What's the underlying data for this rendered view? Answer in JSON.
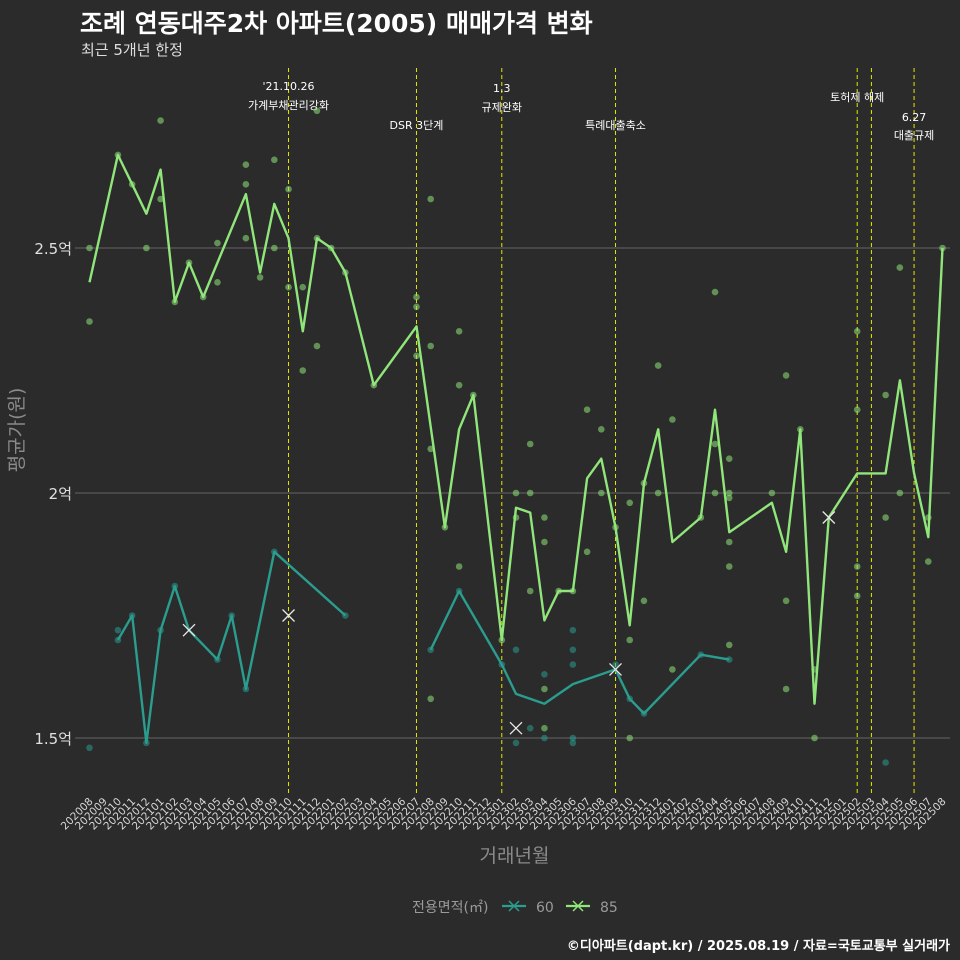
{
  "title": "조례 연동대주2차 아파트(2005) 매매가격 변화",
  "subtitle": "최근 5개년 한정",
  "caption": "©디아파트(dapt.kr) / 2025.08.19 / 자료=국토교통부 실거래가",
  "chart_data": {
    "type": "line",
    "title": "조례 연동대주2차 아파트(2005) 매매가격 변화",
    "subtitle": "최근 5개년 한정",
    "xlabel": "거래년월",
    "ylabel": "평균가(원)",
    "ylim": [
      1.4,
      2.72
    ],
    "yticks": [
      {
        "v": 1.5,
        "label": "1.5억"
      },
      {
        "v": 2.0,
        "label": "2억"
      },
      {
        "v": 2.5,
        "label": "2.5억"
      }
    ],
    "categories": [
      "202008",
      "202009",
      "202010",
      "202011",
      "202012",
      "202101",
      "202102",
      "202103",
      "202104",
      "202105",
      "202106",
      "202107",
      "202108",
      "202109",
      "202110",
      "202111",
      "202112",
      "202201",
      "202202",
      "202203",
      "202204",
      "202205",
      "202206",
      "202207",
      "202208",
      "202209",
      "202210",
      "202211",
      "202212",
      "202301",
      "202302",
      "202303",
      "202304",
      "202305",
      "202306",
      "202307",
      "202308",
      "202309",
      "202310",
      "202311",
      "202312",
      "202401",
      "202402",
      "202403",
      "202404",
      "202405",
      "202406",
      "202407",
      "202408",
      "202409",
      "202410",
      "202411",
      "202412",
      "202501",
      "202502",
      "202503",
      "202504",
      "202505",
      "202506",
      "202507",
      "202508"
    ],
    "legend": {
      "title": "전용면적(㎡)",
      "position": "bottom"
    },
    "annotations": [
      {
        "x": "202110",
        "lines": [
          "'21.10.26",
          "가계부채관리강화"
        ]
      },
      {
        "x": "202207",
        "lines": [
          "DSR 3단계"
        ]
      },
      {
        "x": "202301",
        "lines": [
          "1.3",
          "규제완화"
        ]
      },
      {
        "x": "202309",
        "lines": [
          "특례대출축소"
        ]
      },
      {
        "x": "202502",
        "lines": [
          "토허제 해제"
        ]
      },
      {
        "x": "202503",
        "lines": []
      },
      {
        "x": "202506",
        "lines": [
          "6.27",
          "대출규제"
        ]
      }
    ],
    "series": [
      {
        "name": "60",
        "color": "#2a9d8f",
        "line": [
          [
            1.7,
            "202010"
          ],
          [
            1.75,
            "202011"
          ],
          [
            1.49,
            "202012"
          ],
          [
            1.72,
            "202101"
          ],
          [
            1.81,
            "202102"
          ],
          [
            1.72,
            "202103"
          ],
          [
            1.66,
            "202105"
          ],
          [
            1.75,
            "202106"
          ],
          [
            1.6,
            "202107"
          ],
          [
            1.88,
            "202109"
          ],
          [
            1.75,
            "202202"
          ]
        ],
        "line2": [
          [
            1.68,
            "202208"
          ],
          [
            1.8,
            "202210"
          ],
          [
            1.65,
            "202301"
          ],
          [
            1.59,
            "202302"
          ],
          [
            1.57,
            "202304"
          ],
          [
            1.61,
            "202306"
          ],
          [
            1.64,
            "202309"
          ],
          [
            1.58,
            "202310"
          ],
          [
            1.55,
            "202311"
          ],
          [
            1.67,
            "202403"
          ],
          [
            1.66,
            "202405"
          ]
        ],
        "points": [
          [
            "202008",
            1.48
          ],
          [
            "202010",
            1.7
          ],
          [
            "202010",
            1.72
          ],
          [
            "202011",
            1.75
          ],
          [
            "202012",
            1.49
          ],
          [
            "202101",
            1.72
          ],
          [
            "202102",
            1.81
          ],
          [
            "202105",
            1.66
          ],
          [
            "202106",
            1.75
          ],
          [
            "202107",
            1.6
          ],
          [
            "202109",
            1.88
          ],
          [
            "202202",
            1.75
          ],
          [
            "202208",
            1.68
          ],
          [
            "202210",
            1.8
          ],
          [
            "202301",
            1.65
          ],
          [
            "202302",
            1.49
          ],
          [
            "202302",
            1.68
          ],
          [
            "202303",
            1.52
          ],
          [
            "202304",
            1.5
          ],
          [
            "202304",
            1.63
          ],
          [
            "202306",
            1.49
          ],
          [
            "202306",
            1.5
          ],
          [
            "202306",
            1.65
          ],
          [
            "202306",
            1.68
          ],
          [
            "202306",
            1.72
          ],
          [
            "202309",
            1.65
          ],
          [
            "202310",
            1.58
          ],
          [
            "202311",
            1.55
          ],
          [
            "202403",
            1.67
          ],
          [
            "202405",
            1.66
          ],
          [
            "202504",
            1.45
          ]
        ],
        "crosses": [
          [
            "202103",
            1.72
          ],
          [
            "202110",
            1.75
          ],
          [
            "202302",
            1.52
          ],
          [
            "202309",
            1.64
          ]
        ]
      },
      {
        "name": "85",
        "color": "#90e67a",
        "line": [
          [
            "202008",
            2.43
          ],
          [
            "202010",
            2.69
          ],
          [
            "202012",
            2.57
          ],
          [
            "202101",
            2.66
          ],
          [
            "202102",
            2.39
          ],
          [
            "202103",
            2.47
          ],
          [
            "202104",
            2.4
          ],
          [
            "202107",
            2.61
          ],
          [
            "202108",
            2.45
          ],
          [
            "202109",
            2.59
          ],
          [
            "202110",
            2.52
          ],
          [
            "202111",
            2.33
          ],
          [
            "202112",
            2.52
          ],
          [
            "202201",
            2.5
          ],
          [
            "202202",
            2.45
          ],
          [
            "202204",
            2.22
          ],
          [
            "202207",
            2.34
          ],
          [
            "202209",
            1.93
          ],
          [
            "202210",
            2.13
          ],
          [
            "202211",
            2.2
          ],
          [
            "202301",
            1.7
          ],
          [
            "202302",
            1.97
          ],
          [
            "202303",
            1.96
          ],
          [
            "202304",
            1.74
          ],
          [
            "202305",
            1.8
          ],
          [
            "202306",
            1.8
          ],
          [
            "202307",
            2.03
          ],
          [
            "202308",
            2.07
          ],
          [
            "202309",
            1.93
          ],
          [
            "202310",
            1.73
          ],
          [
            "202311",
            2.02
          ],
          [
            "202312",
            2.13
          ],
          [
            "202401",
            1.9
          ],
          [
            "202403",
            1.95
          ],
          [
            "202404",
            2.17
          ],
          [
            "202405",
            1.92
          ],
          [
            "202408",
            1.98
          ],
          [
            "202409",
            1.88
          ],
          [
            "202410",
            2.13
          ],
          [
            "202411",
            1.57
          ],
          [
            "202412",
            1.95
          ],
          [
            "202502",
            2.04
          ],
          [
            "202504",
            2.04
          ],
          [
            "202505",
            2.23
          ],
          [
            "202506",
            2.04
          ],
          [
            "202507",
            1.91
          ],
          [
            "202508",
            2.5
          ]
        ],
        "points": [
          [
            "202008",
            2.5
          ],
          [
            "202008",
            2.35
          ],
          [
            "202010",
            2.69
          ],
          [
            "202011",
            2.63
          ],
          [
            "202012",
            2.5
          ],
          [
            "202101",
            2.6
          ],
          [
            "202101",
            2.76
          ],
          [
            "202102",
            2.39
          ],
          [
            "202103",
            2.47
          ],
          [
            "202104",
            2.4
          ],
          [
            "202105",
            2.43
          ],
          [
            "202105",
            2.51
          ],
          [
            "202107",
            2.52
          ],
          [
            "202107",
            2.63
          ],
          [
            "202107",
            2.67
          ],
          [
            "202108",
            2.44
          ],
          [
            "202109",
            2.5
          ],
          [
            "202109",
            2.68
          ],
          [
            "202110",
            2.42
          ],
          [
            "202110",
            2.62
          ],
          [
            "202111",
            2.25
          ],
          [
            "202111",
            2.42
          ],
          [
            "202112",
            2.3
          ],
          [
            "202112",
            2.52
          ],
          [
            "202112",
            2.78
          ],
          [
            "202201",
            2.5
          ],
          [
            "202202",
            2.45
          ],
          [
            "202204",
            2.22
          ],
          [
            "202207",
            2.28
          ],
          [
            "202207",
            2.38
          ],
          [
            "202207",
            2.4
          ],
          [
            "202208",
            2.09
          ],
          [
            "202208",
            2.3
          ],
          [
            "202208",
            2.6
          ],
          [
            "202208",
            1.58
          ],
          [
            "202209",
            1.93
          ],
          [
            "202210",
            1.85
          ],
          [
            "202210",
            2.22
          ],
          [
            "202210",
            2.33
          ],
          [
            "202211",
            2.2
          ],
          [
            "202301",
            1.7
          ],
          [
            "202302",
            1.95
          ],
          [
            "202302",
            2.0
          ],
          [
            "202303",
            1.8
          ],
          [
            "202303",
            2.0
          ],
          [
            "202303",
            2.1
          ],
          [
            "202304",
            1.52
          ],
          [
            "202304",
            1.6
          ],
          [
            "202304",
            1.9
          ],
          [
            "202304",
            1.95
          ],
          [
            "202305",
            1.8
          ],
          [
            "202306",
            1.8
          ],
          [
            "202307",
            1.88
          ],
          [
            "202307",
            2.17
          ],
          [
            "202308",
            2.0
          ],
          [
            "202308",
            2.13
          ],
          [
            "202309",
            1.93
          ],
          [
            "202310",
            1.5
          ],
          [
            "202310",
            1.7
          ],
          [
            "202310",
            1.98
          ],
          [
            "202311",
            1.78
          ],
          [
            "202311",
            2.02
          ],
          [
            "202312",
            2.0
          ],
          [
            "202312",
            2.26
          ],
          [
            "202401",
            1.64
          ],
          [
            "202401",
            2.15
          ],
          [
            "202403",
            1.95
          ],
          [
            "202404",
            2.0
          ],
          [
            "202404",
            2.1
          ],
          [
            "202404",
            2.41
          ],
          [
            "202405",
            1.69
          ],
          [
            "202405",
            1.85
          ],
          [
            "202405",
            1.9
          ],
          [
            "202405",
            1.99
          ],
          [
            "202405",
            2.0
          ],
          [
            "202405",
            2.07
          ],
          [
            "202408",
            2.0
          ],
          [
            "202409",
            1.6
          ],
          [
            "202409",
            1.78
          ],
          [
            "202409",
            2.24
          ],
          [
            "202410",
            2.13
          ],
          [
            "202411",
            1.5
          ],
          [
            "202411",
            1.64
          ],
          [
            "202502",
            1.79
          ],
          [
            "202502",
            1.85
          ],
          [
            "202502",
            2.17
          ],
          [
            "202502",
            2.33
          ],
          [
            "202504",
            1.95
          ],
          [
            "202504",
            2.2
          ],
          [
            "202505",
            2.0
          ],
          [
            "202505",
            2.46
          ],
          [
            "202507",
            1.86
          ],
          [
            "202507",
            1.95
          ],
          [
            "202508",
            2.5
          ]
        ],
        "crosses": [
          [
            "202412",
            1.95
          ]
        ]
      }
    ]
  }
}
